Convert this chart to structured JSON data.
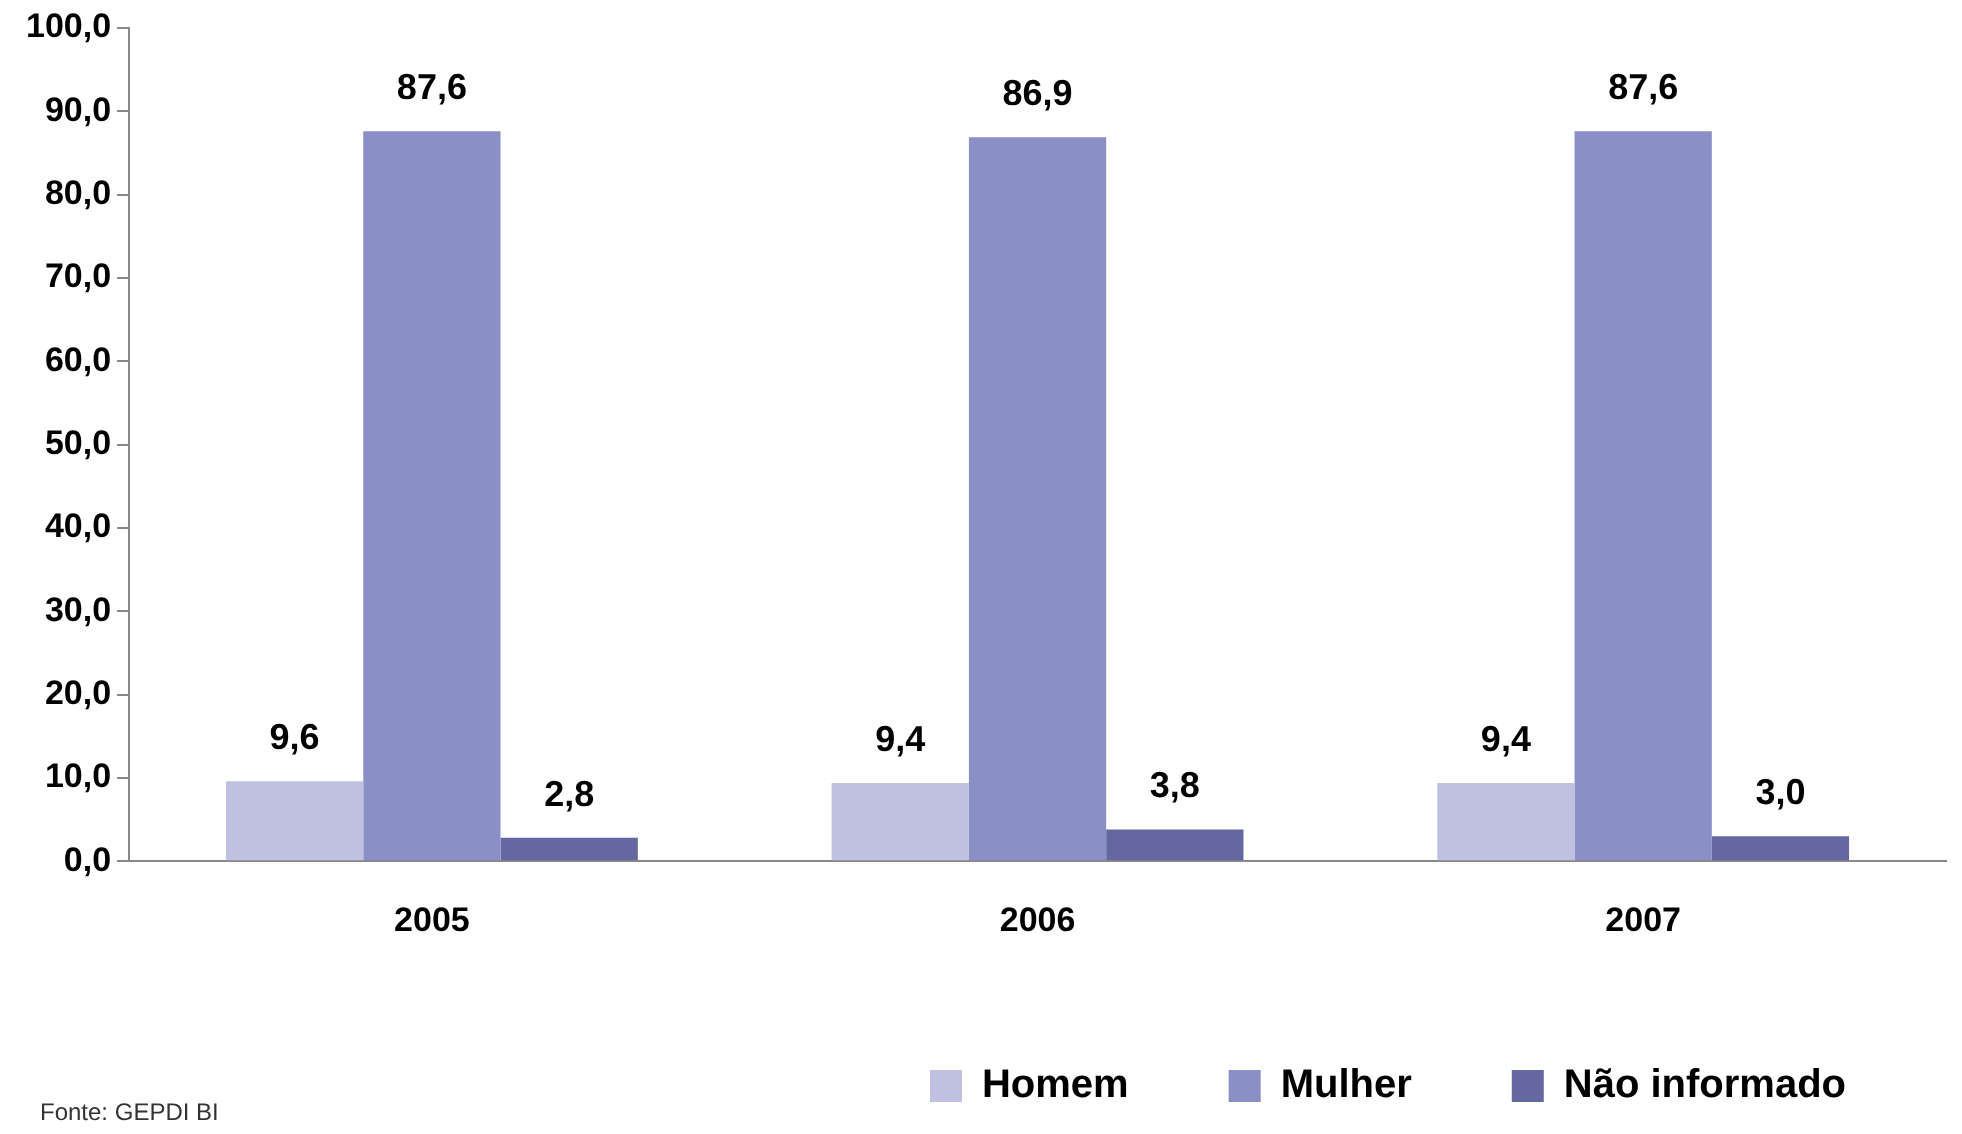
{
  "chart_data": {
    "type": "bar",
    "categories": [
      "2005",
      "2006",
      "2007"
    ],
    "series": [
      {
        "name": "Homem",
        "color": "#c0c0e0",
        "values": [
          9.6,
          9.4,
          9.4
        ],
        "value_labels": [
          "9,6",
          "9,4",
          "9,4"
        ]
      },
      {
        "name": "Mulher",
        "color": "#8a8fc6",
        "values": [
          87.6,
          86.9,
          87.6
        ],
        "value_labels": [
          "87,6",
          "86,9",
          "87,6"
        ]
      },
      {
        "name": "Não informado",
        "color": "#6467a0",
        "values": [
          2.8,
          3.8,
          3.0
        ],
        "value_labels": [
          "2,8",
          "3,8",
          "3,0"
        ]
      }
    ],
    "ylim": [
      0,
      100
    ],
    "yticks": [
      {
        "value": 0,
        "label": "0,0"
      },
      {
        "value": 10,
        "label": "10,0"
      },
      {
        "value": 20,
        "label": "20,0"
      },
      {
        "value": 30,
        "label": "30,0"
      },
      {
        "value": 40,
        "label": "40,0"
      },
      {
        "value": 50,
        "label": "50,0"
      },
      {
        "value": 60,
        "label": "60,0"
      },
      {
        "value": 70,
        "label": "70,0"
      },
      {
        "value": 80,
        "label": "80,0"
      },
      {
        "value": 90,
        "label": "90,0"
      },
      {
        "value": 100,
        "label": "100,0"
      }
    ],
    "grid": false,
    "legend": "bottom right",
    "annotations": [
      "Fonte: GEPDI BI"
    ]
  }
}
